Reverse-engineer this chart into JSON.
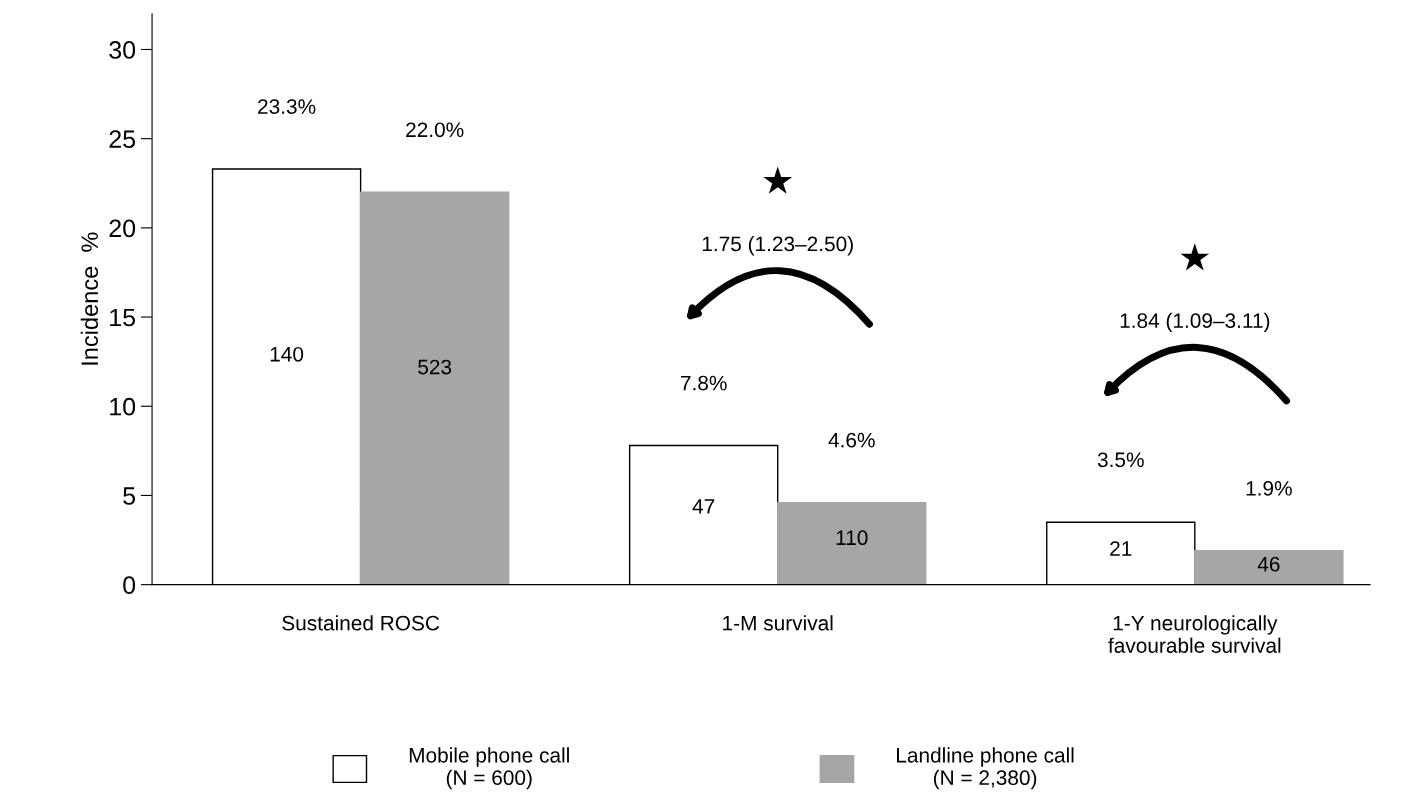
{
  "chart_data": {
    "type": "bar",
    "ylabel": "Incidence  %",
    "categories": [
      "Sustained ROSC",
      "1-M survival",
      "1-Y neurologically\nfavourable survival"
    ],
    "series": [
      {
        "name": "Mobile phone call\n(N = 600)",
        "color": "#ffffff",
        "values": [
          23.3,
          7.8,
          3.5
        ],
        "value_labels": [
          "23.3%",
          "7.8%",
          "3.5%"
        ]
      },
      {
        "name": "Landline phone call\n(N = 2,380)",
        "color": "#a6a6a6",
        "values": [
          22.0,
          4.6,
          1.9
        ],
        "value_labels": [
          "22.0%",
          "4.6%",
          "1.9%"
        ]
      }
    ],
    "ylim": [
      0,
      32
    ],
    "yticks": [
      0,
      5,
      10,
      15,
      20,
      25,
      30
    ],
    "grid": false,
    "legend": "bottom",
    "annotations": [
      "140",
      "523",
      "47",
      "110",
      "21",
      "46",
      "★",
      "1.75 (1.23–2.50)",
      "★",
      "1.84 (1.09–3.11)"
    ]
  }
}
